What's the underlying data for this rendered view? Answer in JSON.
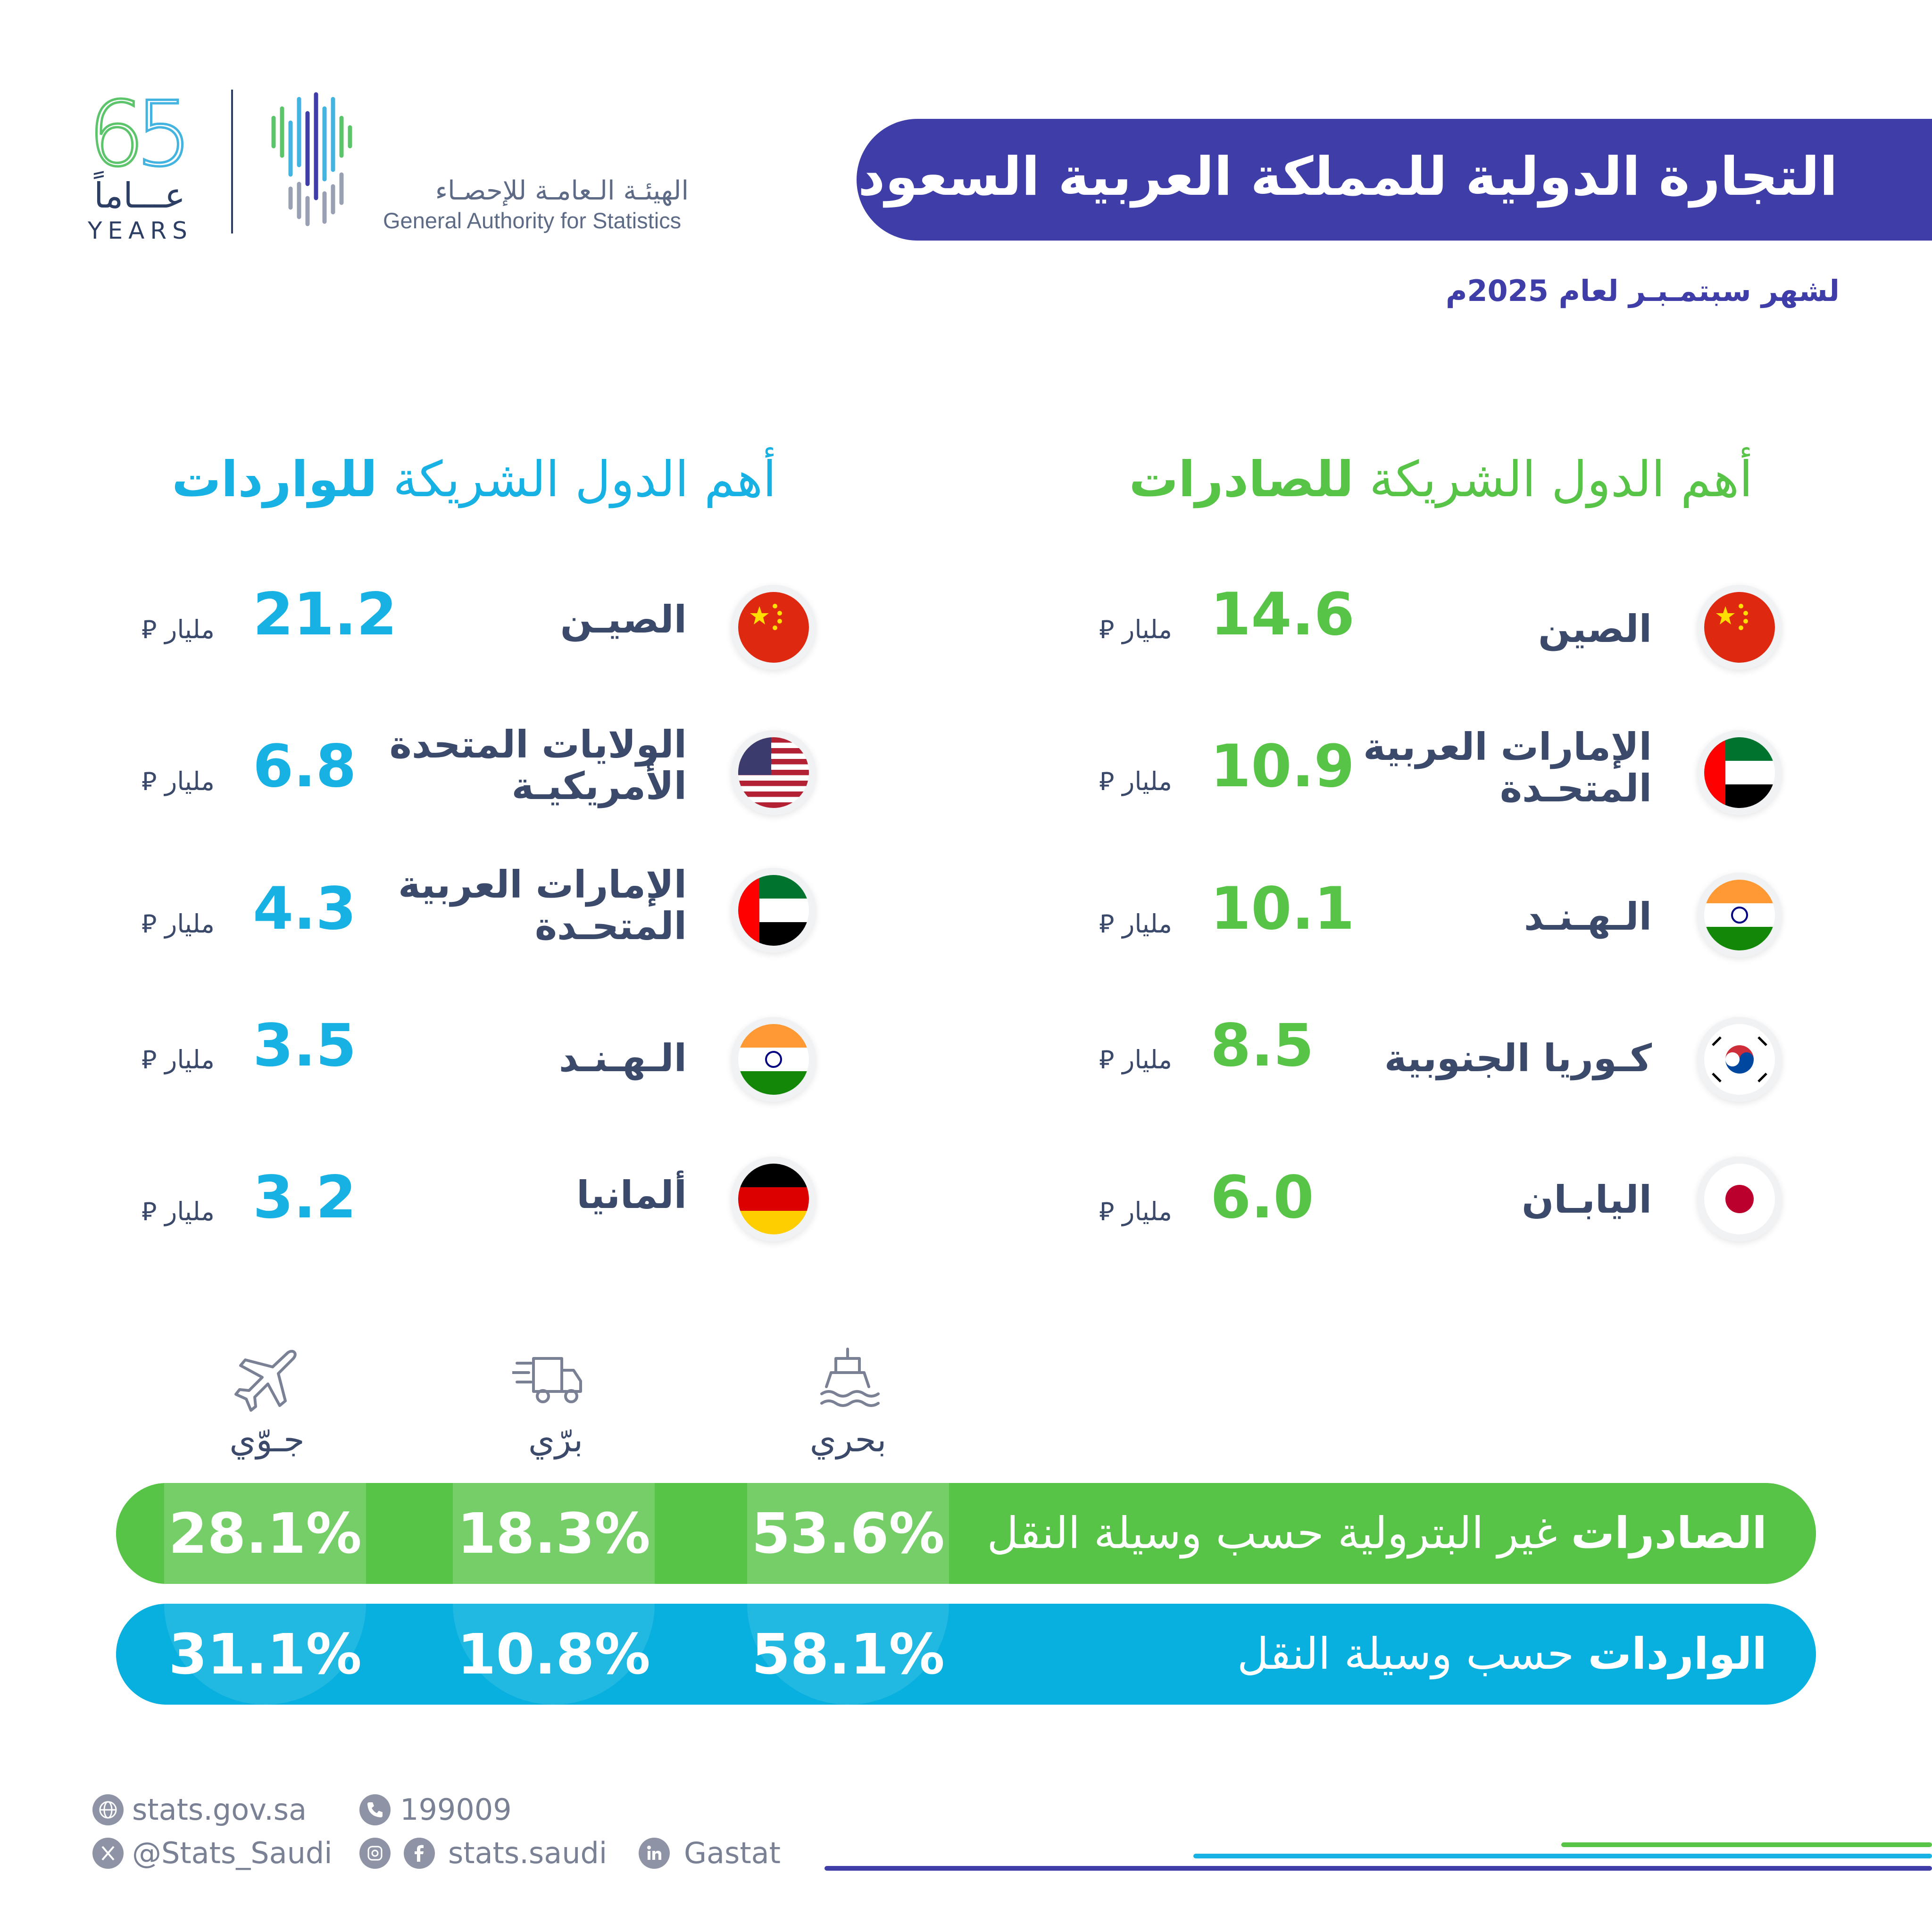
{
  "header": {
    "anniversary_number": "65",
    "anniversary_ar": "عـــاماً",
    "anniversary_en": "YEARS",
    "org_name_ar": "الهيئـة الـعامـة للإحصـاء",
    "org_name_en": "General Authority for Statistics",
    "title": "التجارة الدولية للمملكة العربية السعودية",
    "subtitle": "لشهر سبتمـبـر لعام 2025م"
  },
  "exports": {
    "title_regular": "أهم الدول الشريكة ",
    "title_bold": "للصادرات",
    "unit": "مليار ⃁",
    "partners": [
      {
        "country": "الصين",
        "value": "14.6",
        "flag": "china-flag"
      },
      {
        "country_line1": "الإمارات العربية",
        "country_line2": "المتحـدة",
        "value": "10.9",
        "flag": "uae-flag"
      },
      {
        "country": "الـهـنـد",
        "value": "10.1",
        "flag": "india-flag"
      },
      {
        "country": "كـوريا الجنوبية",
        "value": "8.5",
        "flag": "south-korea-flag"
      },
      {
        "country": "اليابـان",
        "value": "6.0",
        "flag": "japan-flag"
      }
    ]
  },
  "imports": {
    "title_regular": "أهم الدول الشريكة ",
    "title_bold": "للواردات",
    "unit": "مليار ⃁",
    "partners": [
      {
        "country": "الصيـن",
        "value": "21.2",
        "flag": "china-flag"
      },
      {
        "country_line1": "الولايات المتحدة",
        "country_line2": "الأمريكيـة",
        "value": "6.8",
        "flag": "usa-flag"
      },
      {
        "country_line1": "الإمارات العربية",
        "country_line2": "المتحـدة",
        "value": "4.3",
        "flag": "uae-flag"
      },
      {
        "country": "الـهـنـد",
        "value": "3.5",
        "flag": "india-flag"
      },
      {
        "country": "ألمانيا",
        "value": "3.2",
        "flag": "germany-flag"
      }
    ]
  },
  "transport": {
    "modes": [
      {
        "label": "بحري",
        "icon": "ship-icon"
      },
      {
        "label": "برّي",
        "icon": "truck-icon"
      },
      {
        "label": "جـوّي",
        "icon": "plane-icon"
      }
    ],
    "exports_label_bold": "الصادرات",
    "exports_label_regular": " غير البترولية حسب وسيلة النقل",
    "imports_label_bold": "الواردات",
    "imports_label_regular": " حسب وسيلة النقل",
    "exports_pct": {
      "sea": "53.6%",
      "land": "18.3%",
      "air": "28.1%"
    },
    "imports_pct": {
      "sea": "58.1%",
      "land": "10.8%",
      "air": "31.1%"
    }
  },
  "footer": {
    "website": "stats.gov.sa",
    "phone": "199009",
    "twitter": "@Stats_Saudi",
    "instagram_facebook": "stats.saudi",
    "linkedin": "Gastat"
  },
  "colors": {
    "primary_purple": "#3f3da8",
    "export_green": "#58c447",
    "import_blue": "#17b1e3"
  }
}
